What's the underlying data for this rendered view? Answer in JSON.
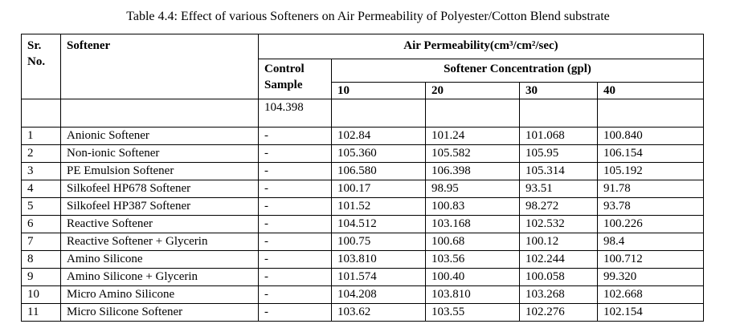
{
  "caption": "Table 4.4: Effect of various Softeners on Air Permeability of Polyester/Cotton Blend substrate",
  "header": {
    "sr_no": "Sr. No.",
    "softener": "Softener",
    "air_permeability": "Air Permeability(cm³/cm²/sec)",
    "control_sample": "Control Sample",
    "softener_concentration": "Softener Concentration (gpl)",
    "concentrations": [
      "10",
      "20",
      "30",
      "40"
    ]
  },
  "control_value": "104.398",
  "rows": [
    {
      "sr": "1",
      "name": "Anionic Softener",
      "control": "-",
      "c10": "102.84",
      "c20": "101.24",
      "c30": "101.068",
      "c40": "100.840"
    },
    {
      "sr": "2",
      "name": "Non-ionic Softener",
      "control": "-",
      "c10": "105.360",
      "c20": "105.582",
      "c30": "105.95",
      "c40": "106.154"
    },
    {
      "sr": "3",
      "name": "PE Emulsion Softener",
      "control": "-",
      "c10": "106.580",
      "c20": "106.398",
      "c30": "105.314",
      "c40": "105.192"
    },
    {
      "sr": "4",
      "name": "Silkofeel HP678 Softener",
      "control": "-",
      "c10": "100.17",
      "c20": "98.95",
      "c30": "93.51",
      "c40": "91.78"
    },
    {
      "sr": "5",
      "name": "Silkofeel HP387 Softener",
      "control": "-",
      "c10": "101.52",
      "c20": "100.83",
      "c30": "98.272",
      "c40": "93.78"
    },
    {
      "sr": "6",
      "name": "Reactive Softener",
      "control": "-",
      "c10": "104.512",
      "c20": "103.168",
      "c30": "102.532",
      "c40": "100.226"
    },
    {
      "sr": "7",
      "name": "Reactive Softener + Glycerin",
      "control": "-",
      "c10": "100.75",
      "c20": "100.68",
      "c30": "100.12",
      "c40": "98.4"
    },
    {
      "sr": "8",
      "name": "Amino Silicone",
      "control": "-",
      "c10": "103.810",
      "c20": "103.56",
      "c30": "102.244",
      "c40": "100.712"
    },
    {
      "sr": "9",
      "name": "Amino Silicone + Glycerin",
      "control": "-",
      "c10": "101.574",
      "c20": "100.40",
      "c30": "100.058",
      "c40": "99.320"
    },
    {
      "sr": "10",
      "name": "Micro Amino Silicone",
      "control": "-",
      "c10": "104.208",
      "c20": "103.810",
      "c30": "103.268",
      "c40": "102.668"
    },
    {
      "sr": "11",
      "name": "Micro Silicone Softener",
      "control": "-",
      "c10": "103.62",
      "c20": "103.55",
      "c30": "102.276",
      "c40": "102.154"
    }
  ]
}
